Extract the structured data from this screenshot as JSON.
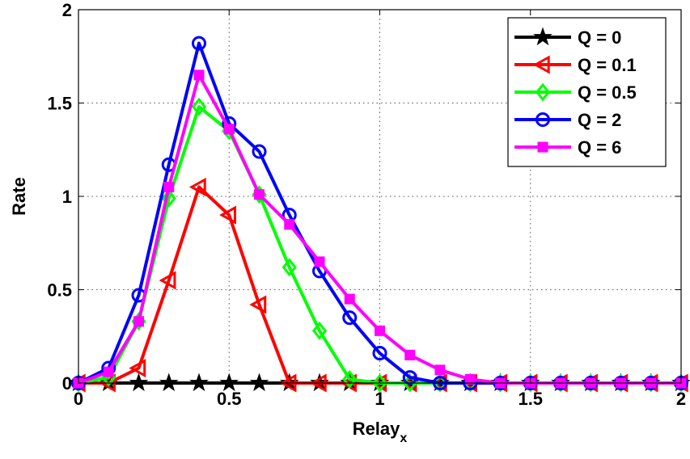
{
  "chart_data": {
    "type": "line",
    "title": "",
    "xlabel": "Relay",
    "xlabel_subscript": "x",
    "ylabel": "Rate",
    "xlim": [
      0,
      2
    ],
    "ylim": [
      0,
      2
    ],
    "xticks": [
      "0",
      "0.5",
      "1",
      "1.5",
      "2"
    ],
    "yticks": [
      "0",
      "0.5",
      "1",
      "1.5",
      "2"
    ],
    "grid": true,
    "legend_position": "top-right",
    "x": [
      0,
      0.1,
      0.2,
      0.3,
      0.4,
      0.5,
      0.6,
      0.7,
      0.8,
      0.9,
      1.0,
      1.1,
      1.2,
      1.3,
      1.4,
      1.5,
      1.6,
      1.7,
      1.8,
      1.9,
      2.0
    ],
    "series": [
      {
        "name": "Q = 0",
        "color": "#000000",
        "marker": "star",
        "values": [
          0,
          0,
          0,
          0,
          0,
          0,
          0,
          0,
          0,
          0,
          0,
          0,
          0,
          0,
          0,
          0,
          0,
          0,
          0,
          0,
          0
        ]
      },
      {
        "name": "Q = 0.1",
        "color": "#ff0000",
        "marker": "triangle-left",
        "values": [
          0,
          0,
          0.08,
          0.55,
          1.05,
          0.9,
          0.42,
          0,
          0,
          0,
          0,
          0,
          0,
          0,
          0,
          0,
          0,
          0,
          0,
          0,
          0
        ]
      },
      {
        "name": "Q = 0.5",
        "color": "#00ff00",
        "marker": "diamond",
        "values": [
          0,
          0.03,
          0.33,
          0.99,
          1.48,
          1.35,
          1.01,
          0.62,
          0.28,
          0.02,
          0,
          0,
          0,
          0,
          0,
          0,
          0,
          0,
          0,
          0,
          0
        ]
      },
      {
        "name": "Q = 2",
        "color": "#0000ff",
        "marker": "circle",
        "values": [
          0,
          0.08,
          0.47,
          1.17,
          1.82,
          1.39,
          1.24,
          0.9,
          0.6,
          0.35,
          0.16,
          0.03,
          0,
          0,
          0,
          0,
          0,
          0,
          0,
          0,
          0
        ]
      },
      {
        "name": "Q = 6",
        "color": "#ff00ff",
        "marker": "square",
        "values": [
          0,
          0.06,
          0.33,
          1.05,
          1.65,
          1.36,
          1.01,
          0.85,
          0.65,
          0.45,
          0.28,
          0.15,
          0.07,
          0.02,
          0,
          0,
          0,
          0,
          0,
          0,
          0
        ]
      }
    ]
  }
}
